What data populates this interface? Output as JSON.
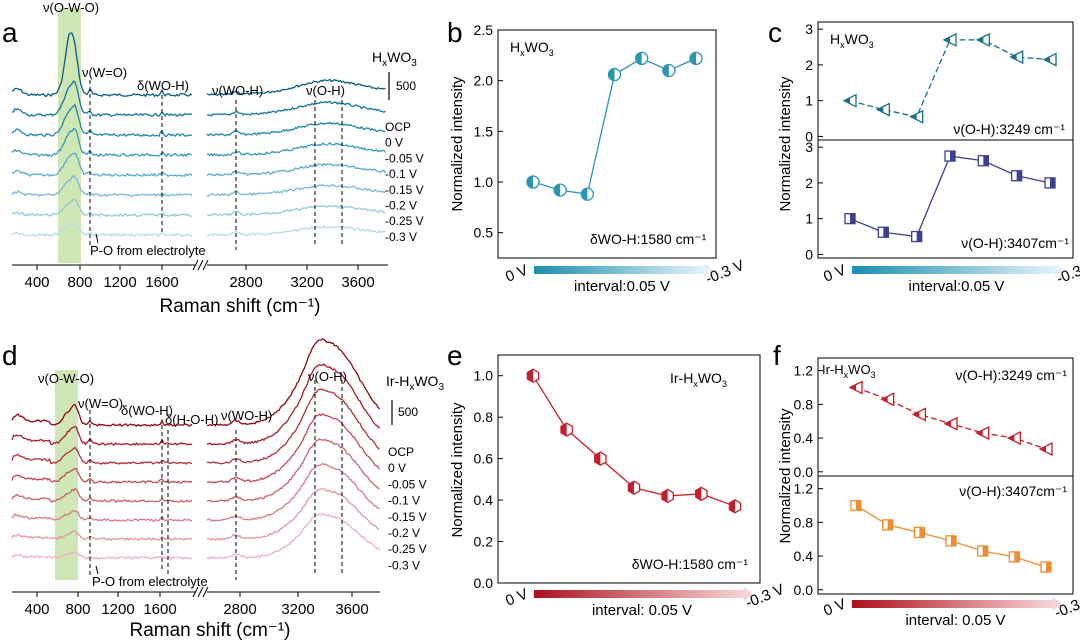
{
  "colors": {
    "teal": "#2b95b3",
    "teal_dark": "#1b6f8a",
    "navy": "#3d3f8f",
    "red": "#c4202c",
    "orange": "#f08c34",
    "band": "#cfe6b5",
    "spec_top": [
      "#0c5d82",
      "#1577a0",
      "#2287ad",
      "#3b99ba",
      "#5aacc8",
      "#7ab9d1",
      "#9bc8dc",
      "#bcd9e8"
    ],
    "spec_bot": [
      "#8c0714",
      "#a51e2c",
      "#b0333f",
      "#bd4c57",
      "#c86570",
      "#d37e88",
      "#df98a0",
      "#eab4bb"
    ]
  },
  "panel_labels": {
    "a": "a",
    "b": "b",
    "c": "c",
    "d": "d",
    "e": "e",
    "f": "f"
  },
  "raman": {
    "xlabel": "Raman shift (cm⁻¹)",
    "ticks_left": [
      "400",
      "800",
      "1200",
      "1600"
    ],
    "ticks_right": [
      "2800",
      "3200",
      "3600"
    ],
    "scale_value": "500",
    "top": {
      "sample_label": "HxWO3",
      "potentials": [
        "OCP",
        "0 V",
        "-0.05 V",
        "-0.1 V",
        "-0.15 V",
        "-0.2 V",
        "-0.25 V",
        "-0.3 V"
      ],
      "annotations": [
        "ν(O-W-O)",
        "ν(W=O)",
        "δ(WO-H)",
        "ν(WO-H)",
        "ν(O-H)"
      ],
      "po_note": "P-O from electrolyte"
    },
    "bottom": {
      "sample_label": "Ir-HxWO3",
      "potentials": [
        "OCP",
        "0 V",
        "-0.05 V",
        "-0.1 V",
        "-0.15 V",
        "-0.2 V",
        "-0.25 V",
        "-0.3 V"
      ],
      "annotations": [
        "ν(O-W-O)",
        "ν(W=O)",
        "δ(WO-H)",
        "δ(H-O-H)",
        "ν(WO-H)",
        "ν(O-H)"
      ],
      "po_note": "P-O from  electrolyte"
    }
  },
  "chart_data": [
    {
      "id": "b",
      "type": "line",
      "title": "HxWO3",
      "ylabel": "Normalized intensity",
      "x": [
        0,
        -0.05,
        -0.1,
        -0.15,
        -0.2,
        -0.25,
        -0.3
      ],
      "values": [
        1.0,
        0.92,
        0.88,
        2.06,
        2.22,
        2.1,
        2.22
      ],
      "ylim": [
        0.25,
        2.5
      ],
      "yticks": [
        "0.5",
        "1.0",
        "1.5",
        "2.0",
        "2.5"
      ],
      "annotation": "δWO-H:1580 cm⁻¹",
      "x_start": "0 V",
      "x_end": "-0.3 V",
      "x_interval": "interval:0.05 V"
    },
    {
      "id": "c",
      "type": "line",
      "title": "HxWO3",
      "ylabel": "Normalized intensity",
      "x_start": "0 V",
      "x_end": "-0.3 V",
      "x_interval": "interval:0.05 V",
      "series": [
        {
          "name": "ν(O-H):3249 cm⁻¹",
          "values": [
            1.0,
            0.75,
            0.55,
            2.7,
            2.7,
            2.22,
            2.15
          ],
          "ylim": [
            -0.1,
            3.2
          ],
          "yticks": [
            "0",
            "1",
            "2",
            "3"
          ]
        },
        {
          "name": "ν(O-H):3407cm⁻¹",
          "values": [
            1.0,
            0.62,
            0.5,
            2.75,
            2.62,
            2.2,
            2.0
          ],
          "ylim": [
            -0.1,
            3.2
          ],
          "yticks": [
            "0",
            "1",
            "2",
            "3"
          ]
        }
      ]
    },
    {
      "id": "e",
      "type": "line",
      "title": "Ir-HxWO3",
      "ylabel": "Normalized intensity",
      "x": [
        0,
        -0.05,
        -0.1,
        -0.15,
        -0.2,
        -0.25,
        -0.3
      ],
      "values": [
        1.0,
        0.74,
        0.6,
        0.46,
        0.42,
        0.43,
        0.37
      ],
      "ylim": [
        0.0,
        1.1
      ],
      "yticks": [
        "0.0",
        "0.2",
        "0.4",
        "0.6",
        "0.8",
        "1.0"
      ],
      "annotation": "δWO-H:1580 cm⁻¹",
      "x_start": "0 V",
      "x_end": "-0.3 V",
      "x_interval": "interval: 0.05 V"
    },
    {
      "id": "f",
      "type": "line",
      "title": "Ir-HxWO3",
      "ylabel": "Normalized intensity",
      "x_start": "0 V",
      "x_end": "-0.3 V",
      "x_interval": "interval: 0.05 V",
      "series": [
        {
          "name": "ν(O-H):3249 cm⁻¹",
          "values": [
            1.0,
            0.86,
            0.68,
            0.57,
            0.46,
            0.4,
            0.27
          ],
          "ylim": [
            -0.05,
            1.35
          ],
          "yticks": [
            "0.0",
            "0.4",
            "0.8",
            "1.2"
          ]
        },
        {
          "name": "ν(O-H):3407cm⁻¹",
          "values": [
            1.0,
            0.77,
            0.68,
            0.58,
            0.46,
            0.39,
            0.27
          ],
          "ylim": [
            -0.05,
            1.35
          ],
          "yticks": [
            "0.0",
            "0.4",
            "0.8",
            "1.2"
          ]
        }
      ]
    }
  ]
}
